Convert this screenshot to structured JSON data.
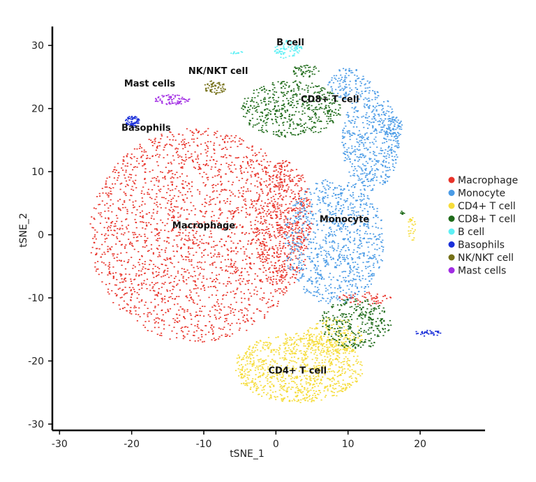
{
  "chart_data": {
    "type": "scatter",
    "title": "",
    "xlabel": "tSNE_1",
    "ylabel": "tSNE_2",
    "xlim": [
      -31,
      29
    ],
    "ylim": [
      -31,
      33
    ],
    "xticks": [
      -30,
      -20,
      -10,
      0,
      10,
      20
    ],
    "yticks": [
      -30,
      -20,
      -10,
      0,
      10,
      20,
      30
    ],
    "grid": false,
    "legend": {
      "placement": "right"
    },
    "series": [
      {
        "name": "Macrophage",
        "color": "#e8332a",
        "blobs": [
          {
            "cx": -11,
            "cy": 0,
            "rx": 15,
            "ry": 17,
            "n": 2200
          },
          {
            "cx": 1,
            "cy": 2,
            "rx": 4,
            "ry": 10,
            "n": 500
          },
          {
            "cx": 12,
            "cy": -10,
            "rx": 4,
            "ry": 1,
            "n": 60
          }
        ],
        "label": {
          "text": "Macrophage",
          "x": -10,
          "y": 1
        }
      },
      {
        "name": "Monocyte",
        "color": "#4a9be6",
        "blobs": [
          {
            "cx": 8,
            "cy": -1,
            "rx": 7,
            "ry": 10,
            "n": 900
          },
          {
            "cx": 13,
            "cy": 15,
            "rx": 4,
            "ry": 8,
            "n": 500
          },
          {
            "cx": 10,
            "cy": 24,
            "rx": 3,
            "ry": 2.5,
            "n": 120
          },
          {
            "cx": 16,
            "cy": 17,
            "rx": 1.5,
            "ry": 2,
            "n": 80
          }
        ],
        "label": {
          "text": "Monocyte",
          "x": 9.5,
          "y": 2
        }
      },
      {
        "name": "CD4+ T cell",
        "color": "#f6dc3a",
        "blobs": [
          {
            "cx": 3,
            "cy": -21,
            "rx": 9,
            "ry": 5.5,
            "n": 950
          },
          {
            "cx": 8,
            "cy": -16,
            "rx": 4,
            "ry": 3,
            "n": 200
          },
          {
            "cx": 18.7,
            "cy": 1,
            "rx": 0.6,
            "ry": 2,
            "n": 25
          }
        ],
        "label": {
          "text": "CD4+ T cell",
          "x": 3,
          "y": -22
        }
      },
      {
        "name": "CD8+ T cell",
        "color": "#1f6b1a",
        "blobs": [
          {
            "cx": 2,
            "cy": 20,
            "rx": 7,
            "ry": 4.5,
            "n": 520
          },
          {
            "cx": 11,
            "cy": -14,
            "rx": 5,
            "ry": 4,
            "n": 300
          },
          {
            "cx": 4,
            "cy": 26,
            "rx": 2,
            "ry": 1,
            "n": 50
          },
          {
            "cx": 17.5,
            "cy": 3.5,
            "rx": 0.4,
            "ry": 0.4,
            "n": 8
          }
        ],
        "label": {
          "text": "CD8+ T cell",
          "x": 7.5,
          "y": 21
        }
      },
      {
        "name": "B cell",
        "color": "#5df0f5",
        "blobs": [
          {
            "cx": 1.5,
            "cy": 29.5,
            "rx": 2,
            "ry": 1.5,
            "n": 80
          },
          {
            "cx": -5.5,
            "cy": 29,
            "rx": 1,
            "ry": 0.3,
            "n": 10
          }
        ],
        "label": {
          "text": "B cell",
          "x": 2,
          "y": 30
        }
      },
      {
        "name": "Basophils",
        "color": "#1a2fd9",
        "blobs": [
          {
            "cx": -20,
            "cy": 18,
            "rx": 1,
            "ry": 0.9,
            "n": 70
          },
          {
            "cx": 21,
            "cy": -15.5,
            "rx": 2,
            "ry": 0.5,
            "n": 35
          }
        ],
        "label": {
          "text": "Basophils",
          "x": -18,
          "y": 16.5
        }
      },
      {
        "name": "NK/NKT cell",
        "color": "#757018",
        "blobs": [
          {
            "cx": -8.5,
            "cy": 23.5,
            "rx": 1.5,
            "ry": 1.2,
            "n": 60
          }
        ],
        "label": {
          "text": "NK/NKT cell",
          "x": -8,
          "y": 25.5
        }
      },
      {
        "name": "Mast cells",
        "color": "#a12ce3",
        "blobs": [
          {
            "cx": -14.5,
            "cy": 21.5,
            "rx": 2.5,
            "ry": 0.8,
            "n": 70
          }
        ],
        "label": {
          "text": "Mast cells",
          "x": -17.5,
          "y": 23.5
        }
      }
    ]
  }
}
